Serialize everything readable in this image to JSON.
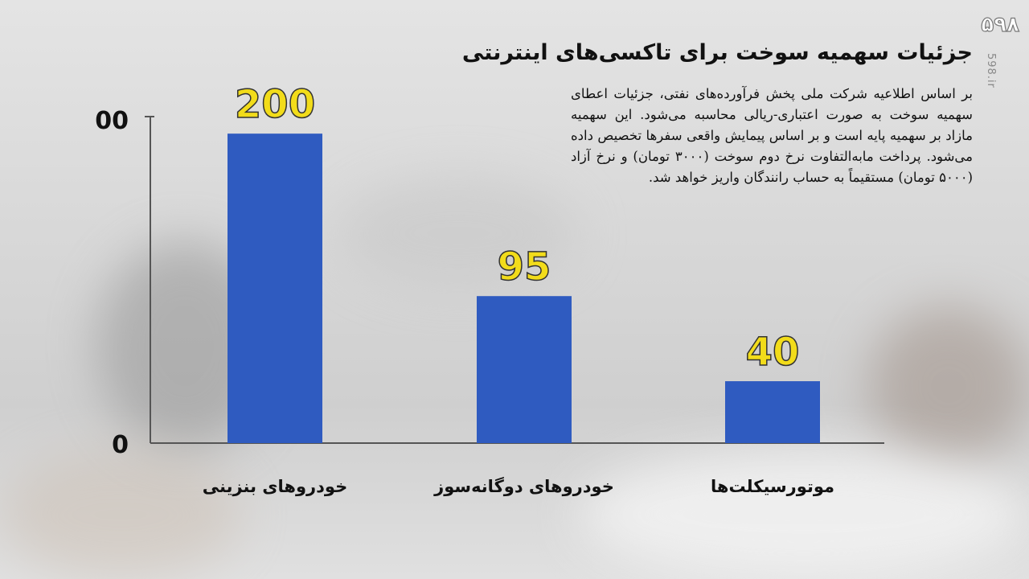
{
  "title": "جزئیات سهمیه سوخت برای تاکسی‌های اینترنتی",
  "body": "بر اساس اطلاعیه شرکت ملی پخش فرآورده‌های نفتی، جزئیات اعطای سهمیه سوخت به صورت اعتباری-ریالی محاسبه می‌شود. این سهمیه مازاد بر سهمیه پایه است و بر اساس پیمایش واقعی سفرها تخصیص داده می‌شود. پرداخت مابه‌التفاوت نرخ دوم سوخت (۳۰۰۰ تومان) و نرخ آزاد (۵۰۰۰ تومان) مستقیماً به حساب رانندگان واریز خواهد شد.",
  "logo": "۵۹۸",
  "site": "598.ir",
  "colors": {
    "bar": "#2f5bc0",
    "value_label": "#f2dc1a",
    "axis": "#555555"
  },
  "chart_data": {
    "type": "bar",
    "categories": [
      "خودروهای بنزینی",
      "خودروهای دوگانه‌سوز",
      "موتورسیکلت‌ها"
    ],
    "values": [
      200,
      95,
      40
    ],
    "data_labels": [
      "200",
      "95",
      "40"
    ],
    "y_tick_labels": [
      "00",
      "0"
    ],
    "ylim": [
      0,
      211
    ],
    "grid": false
  }
}
